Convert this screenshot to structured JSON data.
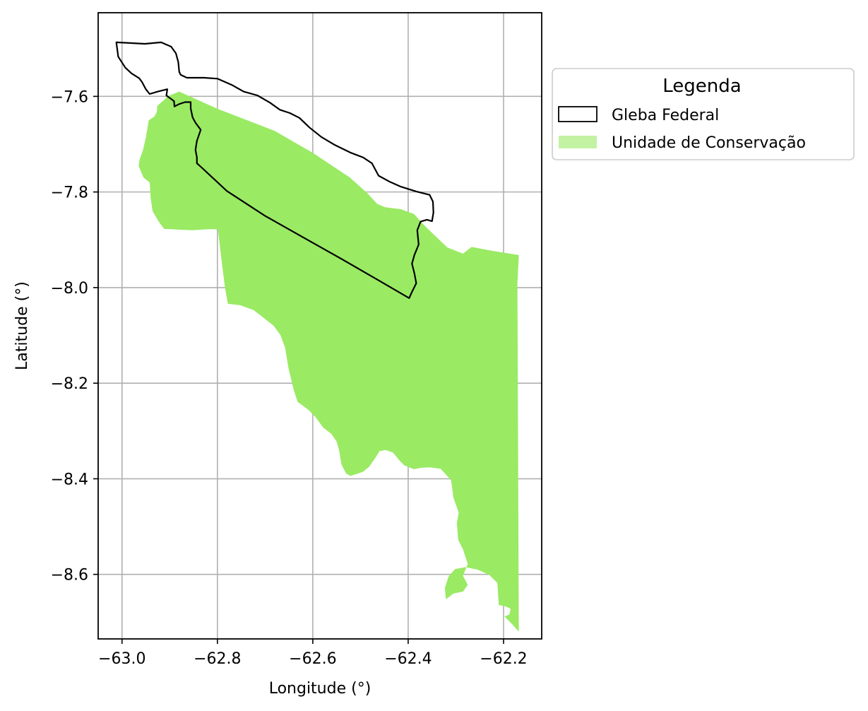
{
  "chart_data": {
    "type": "map",
    "xlabel": "Longitude (°)",
    "ylabel": "Latitude (°)",
    "xlim": [
      -63.05,
      -62.12
    ],
    "ylim": [
      -8.735,
      -7.425
    ],
    "grid": true,
    "xticks": [
      -63.0,
      -62.8,
      -62.6,
      -62.4,
      -62.2
    ],
    "xtick_labels": [
      "−63.0",
      "−62.8",
      "−62.6",
      "−62.4",
      "−62.2"
    ],
    "yticks": [
      -7.6,
      -7.8,
      -8.0,
      -8.2,
      -8.4,
      -8.6
    ],
    "ytick_labels": [
      "−7.6",
      "−7.8",
      "−8.0",
      "−8.2",
      "−8.4",
      "−8.6"
    ],
    "legend": {
      "title": "Legenda",
      "placement": "upper-right-outside",
      "entries": [
        {
          "label": "Gleba Federal",
          "style": "outline",
          "color": "#000000"
        },
        {
          "label": "Unidade de Conservação",
          "style": "fill",
          "color": "#9aea64"
        }
      ]
    },
    "layers": [
      {
        "name": "Unidade de Conservação",
        "style": "fill",
        "color": "#9aea64",
        "coordinates": [
          [
            -62.962,
            -7.551
          ],
          [
            -62.88,
            -7.59
          ],
          [
            -62.8,
            -7.626
          ],
          [
            -62.68,
            -7.672
          ],
          [
            -62.6,
            -7.718
          ],
          [
            -62.522,
            -7.77
          ],
          [
            -62.485,
            -7.803
          ],
          [
            -62.465,
            -7.825
          ],
          [
            -62.448,
            -7.832
          ],
          [
            -62.415,
            -7.836
          ],
          [
            -62.388,
            -7.846
          ],
          [
            -62.364,
            -7.872
          ],
          [
            -62.34,
            -7.895
          ],
          [
            -62.318,
            -7.916
          ],
          [
            -62.285,
            -7.929
          ],
          [
            -62.267,
            -7.915
          ],
          [
            -62.225,
            -7.923
          ],
          [
            -62.168,
            -7.932
          ],
          [
            -62.171,
            -7.99
          ],
          [
            -62.168,
            -8.72
          ],
          [
            -62.182,
            -8.704
          ],
          [
            -62.198,
            -8.688
          ],
          [
            -62.188,
            -8.684
          ],
          [
            -62.185,
            -8.672
          ],
          [
            -62.196,
            -8.667
          ],
          [
            -62.21,
            -8.664
          ],
          [
            -62.213,
            -8.618
          ],
          [
            -62.23,
            -8.601
          ],
          [
            -62.255,
            -8.59
          ],
          [
            -62.28,
            -8.585
          ],
          [
            -62.302,
            -8.589
          ],
          [
            -62.315,
            -8.604
          ],
          [
            -62.323,
            -8.628
          ],
          [
            -62.321,
            -8.652
          ],
          [
            -62.305,
            -8.64
          ],
          [
            -62.285,
            -8.636
          ],
          [
            -62.275,
            -8.622
          ],
          [
            -62.285,
            -8.603
          ],
          [
            -62.275,
            -8.578
          ],
          [
            -62.285,
            -8.548
          ],
          [
            -62.295,
            -8.528
          ],
          [
            -62.298,
            -8.493
          ],
          [
            -62.294,
            -8.471
          ],
          [
            -62.305,
            -8.44
          ],
          [
            -62.31,
            -8.403
          ],
          [
            -62.332,
            -8.379
          ],
          [
            -62.355,
            -8.376
          ],
          [
            -62.373,
            -8.377
          ],
          [
            -62.388,
            -8.38
          ],
          [
            -62.408,
            -8.372
          ],
          [
            -62.418,
            -8.362
          ],
          [
            -62.432,
            -8.345
          ],
          [
            -62.447,
            -8.34
          ],
          [
            -62.46,
            -8.342
          ],
          [
            -62.47,
            -8.358
          ],
          [
            -62.482,
            -8.375
          ],
          [
            -62.494,
            -8.385
          ],
          [
            -62.505,
            -8.389
          ],
          [
            -62.521,
            -8.394
          ],
          [
            -62.53,
            -8.389
          ],
          [
            -62.54,
            -8.37
          ],
          [
            -62.545,
            -8.339
          ],
          [
            -62.55,
            -8.322
          ],
          [
            -62.561,
            -8.306
          ],
          [
            -62.578,
            -8.293
          ],
          [
            -62.595,
            -8.27
          ],
          [
            -62.609,
            -8.256
          ],
          [
            -62.632,
            -8.239
          ],
          [
            -62.64,
            -8.214
          ],
          [
            -62.646,
            -8.189
          ],
          [
            -62.651,
            -8.168
          ],
          [
            -62.658,
            -8.126
          ],
          [
            -62.668,
            -8.099
          ],
          [
            -62.682,
            -8.08
          ],
          [
            -62.702,
            -8.064
          ],
          [
            -62.724,
            -8.047
          ],
          [
            -62.752,
            -8.037
          ],
          [
            -62.778,
            -8.034
          ],
          [
            -62.784,
            -8.001
          ],
          [
            -62.792,
            -7.937
          ],
          [
            -62.799,
            -7.878
          ],
          [
            -62.82,
            -7.878
          ],
          [
            -62.852,
            -7.88
          ],
          [
            -62.876,
            -7.879
          ],
          [
            -62.912,
            -7.877
          ],
          [
            -62.923,
            -7.862
          ],
          [
            -62.936,
            -7.84
          ],
          [
            -62.94,
            -7.812
          ],
          [
            -62.942,
            -7.78
          ],
          [
            -62.955,
            -7.77
          ],
          [
            -62.965,
            -7.746
          ],
          [
            -62.963,
            -7.732
          ],
          [
            -62.956,
            -7.712
          ],
          [
            -62.95,
            -7.686
          ],
          [
            -62.944,
            -7.65
          ],
          [
            -62.932,
            -7.642
          ],
          [
            -62.927,
            -7.632
          ],
          [
            -62.926,
            -7.62
          ],
          [
            -62.91,
            -7.606
          ],
          [
            -62.905,
            -7.6
          ],
          [
            -62.88,
            -7.59
          ]
        ]
      },
      {
        "name": "Gleba Federal",
        "style": "outline",
        "color": "#000000",
        "coordinates": [
          [
            -63.012,
            -7.487
          ],
          [
            -62.99,
            -7.488
          ],
          [
            -62.952,
            -7.49
          ],
          [
            -62.918,
            -7.487
          ],
          [
            -62.897,
            -7.496
          ],
          [
            -62.887,
            -7.51
          ],
          [
            -62.882,
            -7.528
          ],
          [
            -62.88,
            -7.549
          ],
          [
            -62.877,
            -7.555
          ],
          [
            -62.864,
            -7.561
          ],
          [
            -62.828,
            -7.561
          ],
          [
            -62.8,
            -7.563
          ],
          [
            -62.77,
            -7.576
          ],
          [
            -62.745,
            -7.59
          ],
          [
            -62.716,
            -7.598
          ],
          [
            -62.69,
            -7.613
          ],
          [
            -62.669,
            -7.628
          ],
          [
            -62.648,
            -7.635
          ],
          [
            -62.628,
            -7.645
          ],
          [
            -62.607,
            -7.665
          ],
          [
            -62.582,
            -7.685
          ],
          [
            -62.555,
            -7.701
          ],
          [
            -62.52,
            -7.718
          ],
          [
            -62.494,
            -7.728
          ],
          [
            -62.476,
            -7.74
          ],
          [
            -62.462,
            -7.766
          ],
          [
            -62.44,
            -7.778
          ],
          [
            -62.415,
            -7.789
          ],
          [
            -62.383,
            -7.799
          ],
          [
            -62.355,
            -7.806
          ],
          [
            -62.348,
            -7.82
          ],
          [
            -62.347,
            -7.843
          ],
          [
            -62.35,
            -7.861
          ],
          [
            -62.361,
            -7.858
          ],
          [
            -62.374,
            -7.862
          ],
          [
            -62.381,
            -7.88
          ],
          [
            -62.378,
            -7.91
          ],
          [
            -62.387,
            -7.932
          ],
          [
            -62.392,
            -7.95
          ],
          [
            -62.387,
            -7.97
          ],
          [
            -62.383,
            -7.991
          ],
          [
            -62.392,
            -8.009
          ],
          [
            -62.398,
            -8.022
          ],
          [
            -62.462,
            -7.985
          ],
          [
            -62.54,
            -7.94
          ],
          [
            -62.62,
            -7.895
          ],
          [
            -62.7,
            -7.85
          ],
          [
            -62.78,
            -7.798
          ],
          [
            -62.834,
            -7.748
          ],
          [
            -62.843,
            -7.74
          ],
          [
            -62.843,
            -7.728
          ],
          [
            -62.846,
            -7.712
          ],
          [
            -62.843,
            -7.693
          ],
          [
            -62.835,
            -7.67
          ],
          [
            -62.846,
            -7.655
          ],
          [
            -62.852,
            -7.644
          ],
          [
            -62.856,
            -7.625
          ],
          [
            -62.856,
            -7.612
          ],
          [
            -62.868,
            -7.612
          ],
          [
            -62.88,
            -7.616
          ],
          [
            -62.89,
            -7.621
          ],
          [
            -62.891,
            -7.61
          ],
          [
            -62.907,
            -7.598
          ],
          [
            -62.905,
            -7.585
          ],
          [
            -62.925,
            -7.59
          ],
          [
            -62.942,
            -7.595
          ],
          [
            -62.95,
            -7.585
          ],
          [
            -62.958,
            -7.57
          ],
          [
            -62.964,
            -7.562
          ],
          [
            -62.98,
            -7.552
          ],
          [
            -62.993,
            -7.54
          ],
          [
            -63.008,
            -7.517
          ],
          [
            -63.012,
            -7.487
          ]
        ]
      }
    ]
  }
}
